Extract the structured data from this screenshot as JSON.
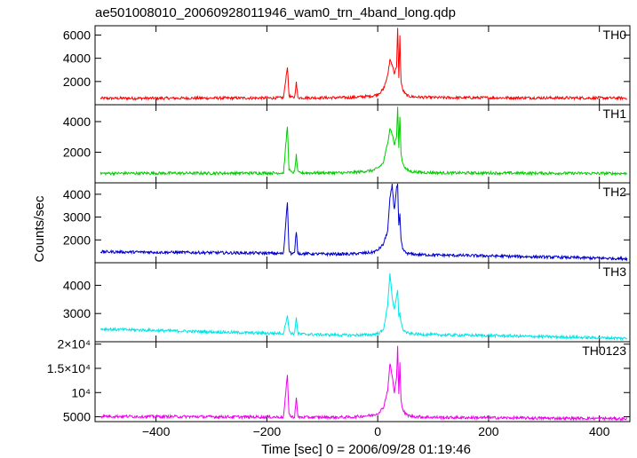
{
  "title": "ae501008010_20060928011946_wam0_trn_4band_long.qdp",
  "xlabel": "Time [sec] 0 = 2006/09/28 01:19:46",
  "ylabel": "Counts/sec",
  "x_ticks": [
    "−400",
    "−200",
    "0",
    "200",
    "400"
  ],
  "x_tick_values": [
    -400,
    -200,
    0,
    200,
    400
  ],
  "chart_data": {
    "type": "line",
    "title": "ae501008010_20060928011946_wam0_trn_4band_long.qdp",
    "xlabel": "Time [sec] 0 = 2006/09/28 01:19:46",
    "ylabel": "Counts/sec",
    "xlim": [
      -510,
      455
    ],
    "series": [
      {
        "name": "TH0",
        "color": "#ff0000",
        "ylim": [
          0,
          6800
        ],
        "y_ticks": [
          "2000",
          "4000",
          "6000"
        ],
        "y_tick_values": [
          2000,
          4000,
          6000
        ],
        "x": [
          -500,
          -400,
          -300,
          -200,
          -170,
          -163,
          -160,
          -156,
          -150,
          -147,
          -144,
          -140,
          -100,
          -50,
          -10,
          0,
          10,
          18,
          22,
          26,
          30,
          34,
          36,
          38,
          40,
          42,
          45,
          50,
          55,
          60,
          80,
          120,
          200,
          300,
          400,
          450
        ],
        "y": [
          550,
          560,
          570,
          580,
          600,
          3300,
          800,
          620,
          650,
          1900,
          620,
          600,
          600,
          620,
          750,
          900,
          1300,
          2500,
          3900,
          3500,
          2700,
          3200,
          6700,
          2400,
          5900,
          2000,
          1300,
          900,
          750,
          700,
          640,
          610,
          600,
          590,
          580,
          570
        ]
      },
      {
        "name": "TH1",
        "color": "#00cc00",
        "ylim": [
          0,
          5100
        ],
        "y_ticks": [
          "2000",
          "4000"
        ],
        "y_tick_values": [
          2000,
          4000
        ],
        "x": [
          -500,
          -400,
          -300,
          -200,
          -170,
          -163,
          -160,
          -156,
          -150,
          -147,
          -144,
          -140,
          -100,
          -50,
          -10,
          0,
          10,
          18,
          22,
          26,
          30,
          34,
          36,
          38,
          40,
          42,
          45,
          50,
          55,
          60,
          80,
          120,
          200,
          300,
          400,
          450
        ],
        "y": [
          620,
          630,
          630,
          640,
          650,
          3700,
          900,
          680,
          700,
          1800,
          680,
          650,
          650,
          660,
          800,
          950,
          1300,
          2600,
          3600,
          3200,
          2500,
          3000,
          5000,
          2300,
          4400,
          1900,
          1300,
          950,
          800,
          740,
          680,
          650,
          640,
          630,
          620,
          610
        ]
      },
      {
        "name": "TH2",
        "color": "#0000cc",
        "ylim": [
          1000,
          4500
        ],
        "y_ticks": [
          "2000",
          "3000",
          "4000"
        ],
        "y_tick_values": [
          2000,
          3000,
          4000
        ],
        "x": [
          -500,
          -400,
          -300,
          -200,
          -170,
          -163,
          -160,
          -156,
          -150,
          -147,
          -144,
          -140,
          -100,
          -50,
          -10,
          0,
          10,
          18,
          22,
          26,
          30,
          34,
          36,
          38,
          40,
          42,
          45,
          50,
          55,
          60,
          80,
          120,
          200,
          300,
          400,
          450
        ],
        "y": [
          1480,
          1460,
          1440,
          1420,
          1400,
          3700,
          1550,
          1400,
          1420,
          2400,
          1420,
          1400,
          1380,
          1380,
          1450,
          1550,
          1800,
          2400,
          3800,
          4400,
          3300,
          4300,
          4400,
          2600,
          3100,
          2000,
          1600,
          1450,
          1400,
          1380,
          1350,
          1330,
          1300,
          1250,
          1200,
          1180
        ]
      },
      {
        "name": "TH3",
        "color": "#00e5e5",
        "ylim": [
          2000,
          4800
        ],
        "y_ticks": [
          "3000",
          "4000"
        ],
        "y_tick_values": [
          3000,
          4000
        ],
        "x": [
          -500,
          -400,
          -300,
          -200,
          -170,
          -163,
          -160,
          -156,
          -150,
          -147,
          -144,
          -140,
          -100,
          -50,
          -10,
          0,
          10,
          18,
          22,
          26,
          30,
          34,
          36,
          38,
          40,
          42,
          45,
          50,
          55,
          60,
          80,
          120,
          200,
          300,
          400,
          450
        ],
        "y": [
          2450,
          2400,
          2350,
          2300,
          2300,
          2950,
          2400,
          2300,
          2280,
          2900,
          2280,
          2270,
          2250,
          2230,
          2250,
          2300,
          2400,
          3300,
          4450,
          3600,
          3100,
          3600,
          3800,
          2900,
          3050,
          2700,
          2450,
          2350,
          2300,
          2280,
          2260,
          2240,
          2220,
          2180,
          2140,
          2120
        ]
      },
      {
        "name": "TH0123",
        "color": "#ee00ee",
        "ylim": [
          4000,
          20500
        ],
        "y_ticks": [
          "5000",
          "10⁴",
          "1.5×10⁴",
          "2×10⁴"
        ],
        "y_tick_values": [
          5000,
          10000,
          15000,
          20000
        ],
        "x": [
          -500,
          -400,
          -300,
          -200,
          -170,
          -163,
          -160,
          -156,
          -150,
          -147,
          -144,
          -140,
          -100,
          -50,
          -10,
          0,
          10,
          18,
          22,
          26,
          30,
          34,
          36,
          38,
          40,
          42,
          45,
          50,
          55,
          60,
          80,
          120,
          200,
          300,
          400,
          450
        ],
        "y": [
          5100,
          5050,
          5000,
          4950,
          4950,
          13500,
          5600,
          4950,
          5000,
          9000,
          4950,
          4900,
          4900,
          4900,
          5300,
          5700,
          6800,
          10500,
          16000,
          13500,
          10000,
          13000,
          19500,
          9500,
          16500,
          8500,
          6500,
          5600,
          5300,
          5100,
          4950,
          4850,
          4800,
          4700,
          4650,
          4600
        ]
      }
    ]
  }
}
